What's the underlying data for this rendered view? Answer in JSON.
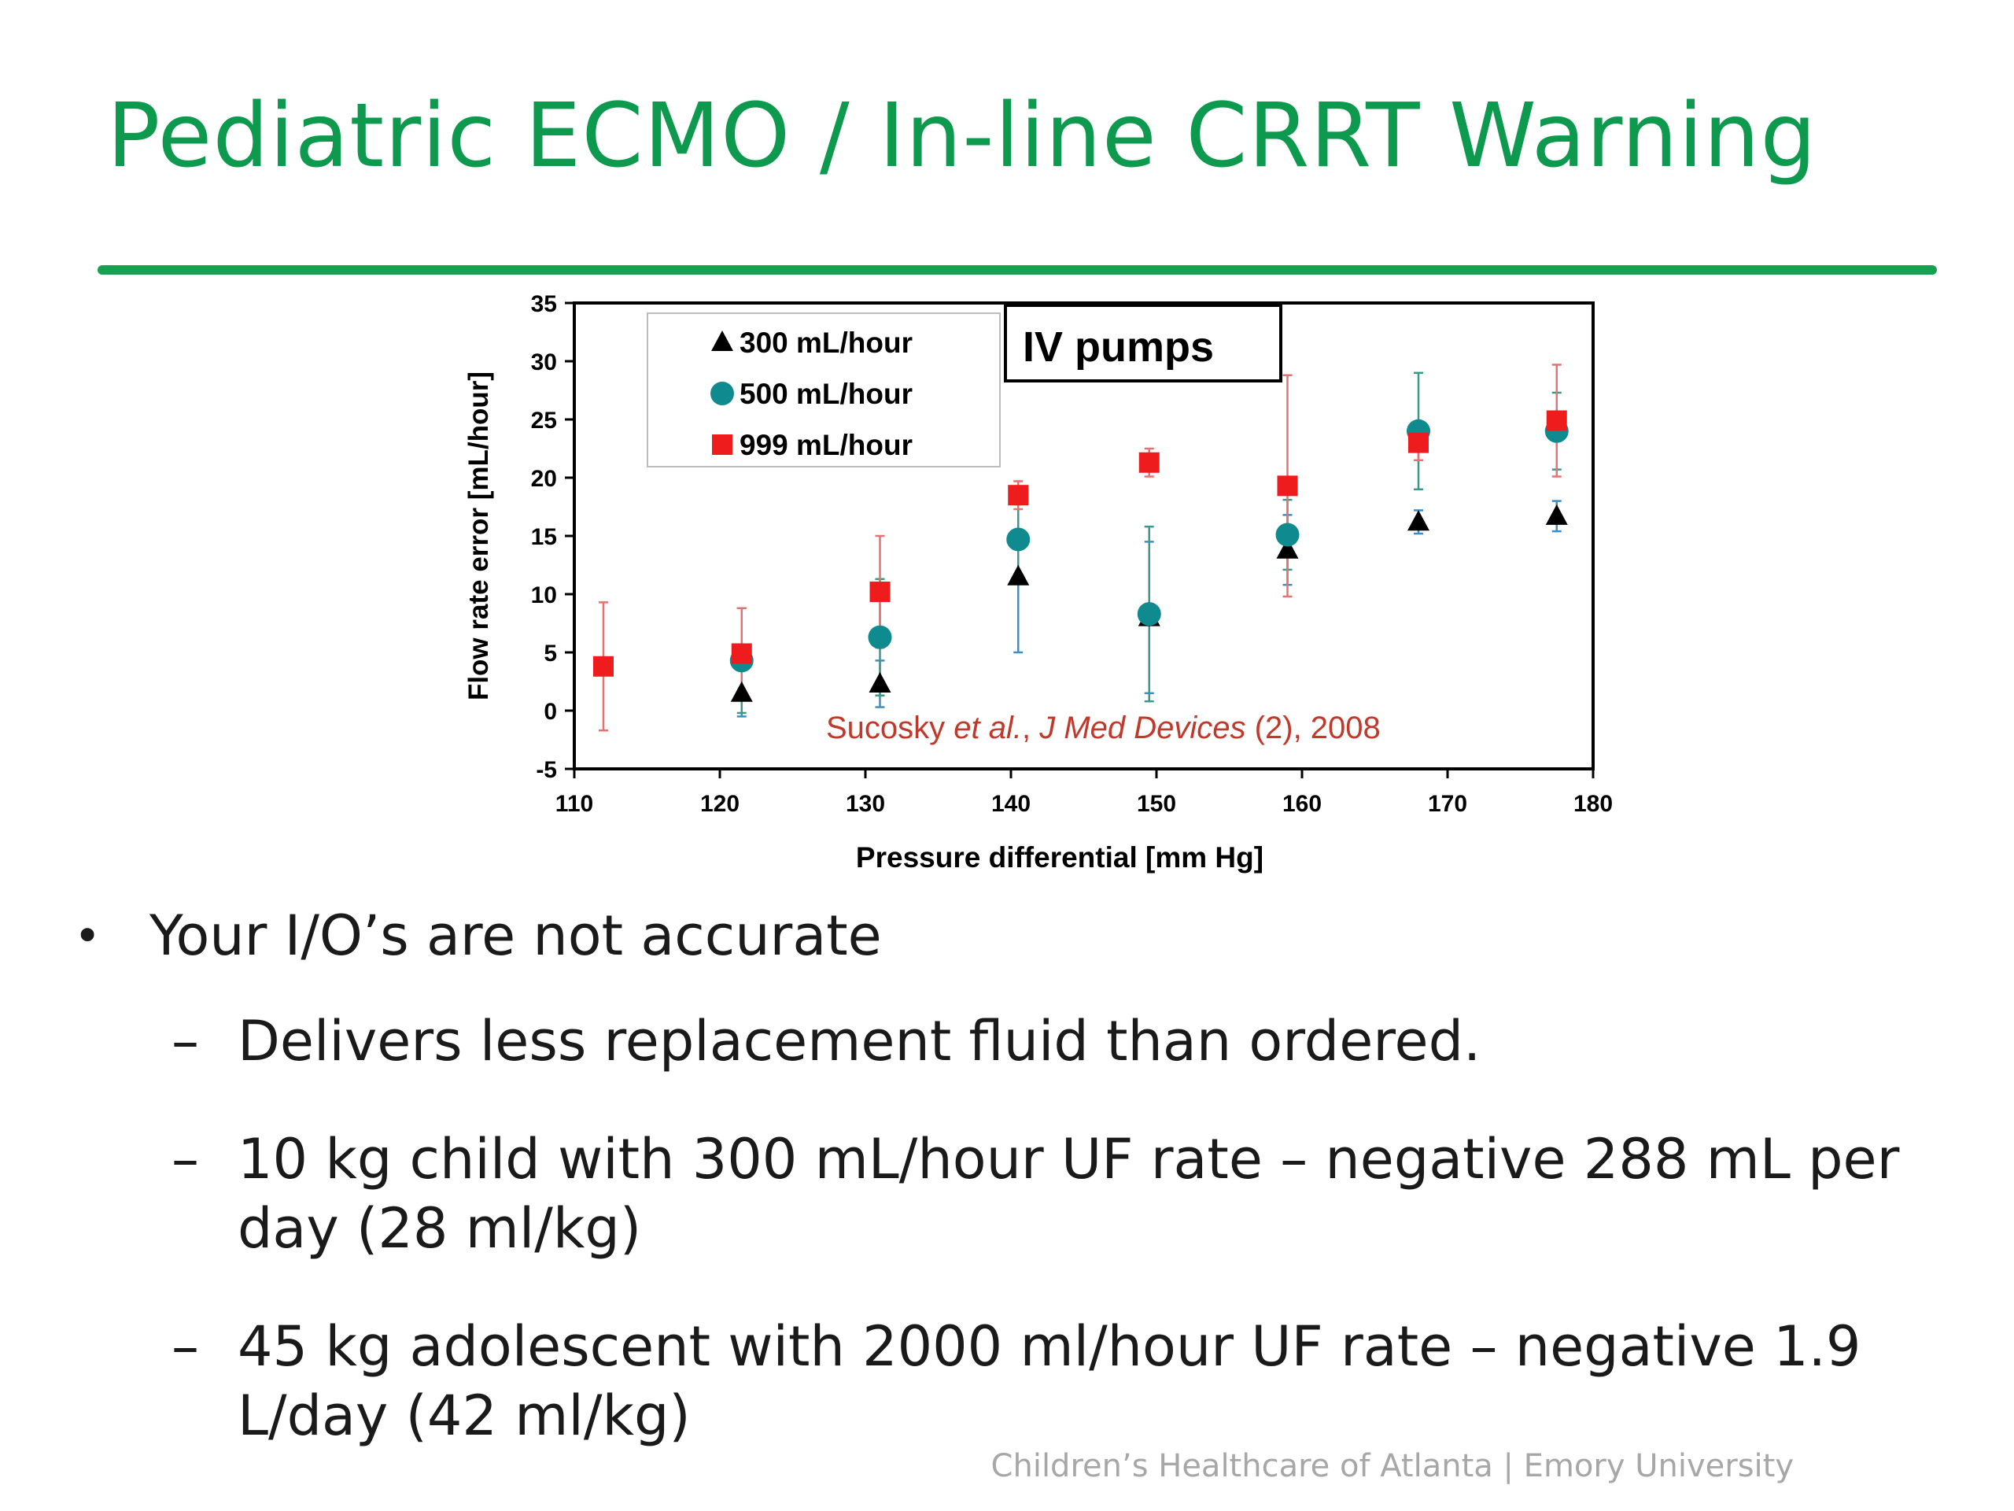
{
  "slide": {
    "title": "Pediatric ECMO / In-line CRRT Warning",
    "title_color": "#0e9a4e",
    "footer": "Children’s Healthcare of Atlanta | Emory University"
  },
  "bullets": [
    {
      "text": "Your I/O’s are not accurate",
      "marker": "•",
      "sub": [
        {
          "marker": "–",
          "text": "Delivers less replacement fluid than ordered."
        },
        {
          "marker": "–",
          "text": "10 kg child with 300 mL/hour UF rate – negative 288 mL per day (28 ml/kg)"
        },
        {
          "marker": "–",
          "text": "45 kg adolescent with 2000 ml/hour UF rate – negative 1.9 L/day (42 ml/kg)"
        }
      ]
    }
  ],
  "chart_data": {
    "type": "scatter",
    "xlabel": "Pressure differential [mm Hg]",
    "ylabel": "Flow rate error [mL/hour]",
    "xlim": [
      110,
      180
    ],
    "ylim": [
      -5,
      35
    ],
    "xticks": [
      110,
      120,
      130,
      140,
      150,
      160,
      170,
      180
    ],
    "yticks": [
      -5,
      0,
      5,
      10,
      15,
      20,
      25,
      30,
      35
    ],
    "grid": false,
    "legend_position": "top-left",
    "annotation_box": "IV pumps",
    "citation": {
      "prefix": "Sucosky ",
      "italic1": "et al.",
      "mid": ", ",
      "italic2": "J Med Devices",
      "suffix": " (2), 2008",
      "color": "#c0392b"
    },
    "series": [
      {
        "name": "300 mL/hour",
        "marker": "triangle",
        "color": "#000000",
        "errorbar_color": "#3a8fc9",
        "x": [
          121.5,
          131,
          140.5,
          149.5,
          159,
          168,
          177.5
        ],
        "y": [
          1.5,
          2.3,
          11.5,
          8.0,
          13.8,
          16.2,
          16.7
        ],
        "err": [
          2.0,
          2.0,
          6.5,
          6.5,
          3.0,
          1.0,
          1.3
        ]
      },
      {
        "name": "500 mL/hour",
        "marker": "circle",
        "color": "#0f8a8f",
        "errorbar_color": "#3a9a8a",
        "x": [
          121.5,
          131,
          140.5,
          149.5,
          159,
          168,
          177.5
        ],
        "y": [
          4.3,
          6.3,
          14.7,
          8.3,
          15.1,
          24.0,
          24.0
        ],
        "err": [
          4.5,
          5.0,
          3.0,
          7.5,
          3.0,
          5.0,
          3.3
        ]
      },
      {
        "name": "999 mL/hour",
        "marker": "square",
        "color": "#ee1c1c",
        "errorbar_color": "#e87070",
        "x": [
          112,
          121.5,
          131,
          140.5,
          149.5,
          159,
          168,
          177.5
        ],
        "y": [
          3.8,
          4.9,
          10.2,
          18.5,
          21.3,
          19.3,
          23.0,
          24.9
        ],
        "err": [
          5.5,
          3.9,
          4.8,
          1.2,
          1.2,
          9.5,
          1.5,
          4.8
        ]
      }
    ]
  }
}
